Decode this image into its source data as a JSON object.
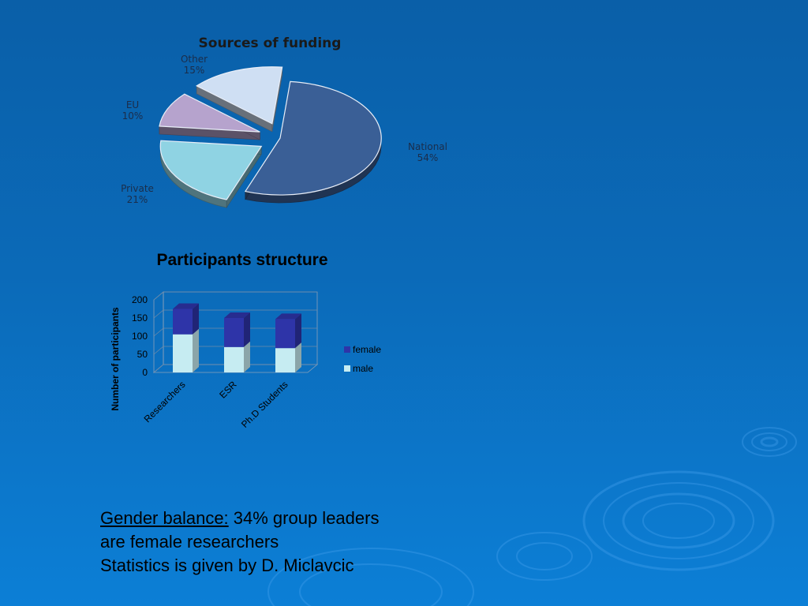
{
  "chart_data": [
    {
      "type": "pie",
      "title": "Sources of funding",
      "slices": [
        {
          "label": "National",
          "percent_label": "54%",
          "value": 54,
          "color": "#3a5f96"
        },
        {
          "label": "Private",
          "percent_label": "21%",
          "value": 21,
          "color": "#8fd3e3"
        },
        {
          "label": "EU",
          "percent_label": "10%",
          "value": 10,
          "color": "#b6a3cd"
        },
        {
          "label": "Other",
          "percent_label": "15%",
          "value": 15,
          "color": "#cfdff3"
        }
      ],
      "style": "3d-exploded"
    },
    {
      "type": "bar",
      "stacked": true,
      "title": "Participants structure",
      "categories": [
        "Researchers",
        "ESR",
        "Ph.D Students"
      ],
      "series": [
        {
          "name": "female",
          "values": [
            70,
            80,
            80
          ],
          "color": "#2e34a8"
        },
        {
          "name": "male",
          "values": [
            105,
            70,
            67
          ],
          "color": "#c6ecf2"
        }
      ],
      "ylabel": "Number of participants",
      "ylim": [
        0,
        200
      ],
      "yticks": [
        0,
        50,
        100,
        150,
        200
      ],
      "grid": true,
      "legend": "right"
    }
  ],
  "footnote": {
    "label": "Gender balance:",
    "line1_rest": " 34% group leaders",
    "line2": "are female researchers",
    "line3": "Statistics is given by D. Miclavcic"
  }
}
